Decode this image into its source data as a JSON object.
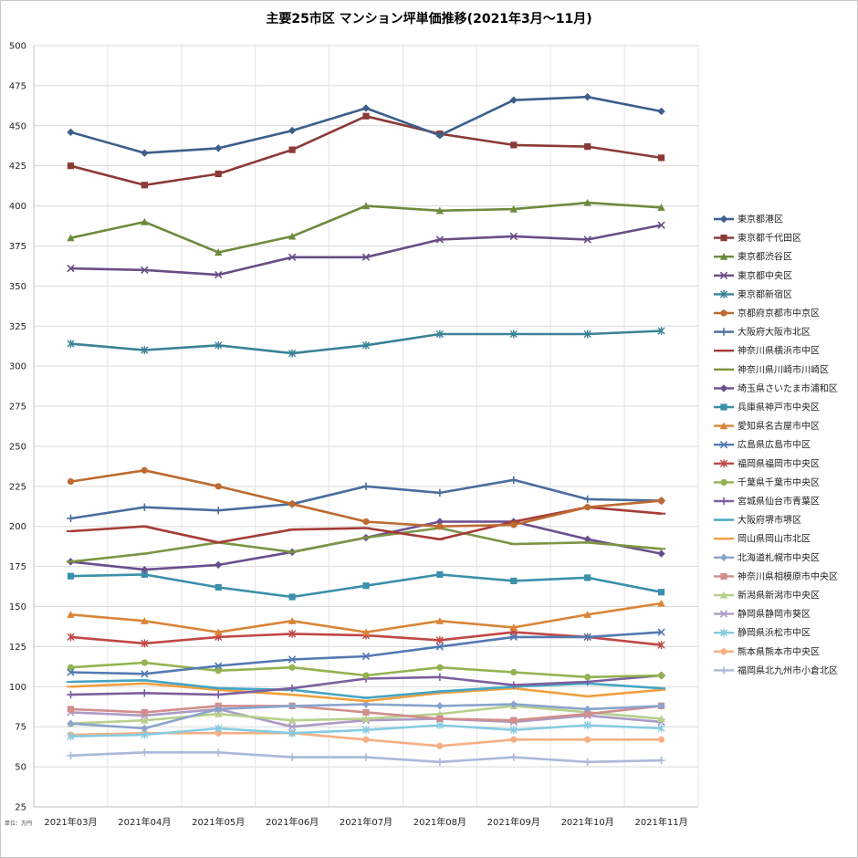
{
  "chart_data": {
    "type": "line",
    "title": "主要25市区 マンション坪単価推移(2021年3月～11月)",
    "unit_note": "単位：万円",
    "categories": [
      "2021年03月",
      "2021年04月",
      "2021年05月",
      "2021年06月",
      "2021年07月",
      "2021年08月",
      "2021年09月",
      "2021年10月",
      "2021年11月"
    ],
    "ylim": [
      25,
      500
    ],
    "yticks": [
      25,
      50,
      75,
      100,
      125,
      150,
      175,
      200,
      225,
      250,
      275,
      300,
      325,
      350,
      375,
      400,
      425,
      450,
      475,
      500
    ],
    "grid": true,
    "legend_position": "right",
    "series": [
      {
        "name": "東京都港区",
        "color": "#3d5f8a",
        "marker": "diamond",
        "values": [
          446,
          433,
          436,
          447,
          461,
          444,
          466,
          468,
          459
        ]
      },
      {
        "name": "東京都千代田区",
        "color": "#8b3a36",
        "marker": "square",
        "values": [
          425,
          413,
          420,
          435,
          456,
          445,
          438,
          437,
          430
        ]
      },
      {
        "name": "東京都渋谷区",
        "color": "#6e8a3e",
        "marker": "triangle",
        "values": [
          380,
          390,
          371,
          381,
          400,
          397,
          398,
          402,
          399
        ]
      },
      {
        "name": "東京都中央区",
        "color": "#6a4d86",
        "marker": "x",
        "values": [
          361,
          360,
          357,
          368,
          368,
          379,
          381,
          379,
          388
        ]
      },
      {
        "name": "東京都新宿区",
        "color": "#3a8297",
        "marker": "star",
        "values": [
          314,
          310,
          313,
          308,
          313,
          320,
          320,
          320,
          322
        ]
      },
      {
        "name": "京都府京都市中京区",
        "color": "#bd6b30",
        "marker": "circle",
        "values": [
          228,
          235,
          225,
          214,
          203,
          200,
          201,
          212,
          216
        ]
      },
      {
        "name": "大阪府大阪市北区",
        "color": "#4a6e9e",
        "marker": "plus",
        "values": [
          205,
          212,
          210,
          214,
          225,
          221,
          229,
          217,
          216
        ]
      },
      {
        "name": "神奈川県横浜市中区",
        "color": "#a53c38",
        "marker": "dash",
        "values": [
          197,
          200,
          190,
          198,
          199,
          192,
          203,
          212,
          208
        ]
      },
      {
        "name": "神奈川県川崎市川崎区",
        "color": "#7e9444",
        "marker": "dash",
        "values": [
          178,
          183,
          190,
          184,
          193,
          199,
          189,
          190,
          186
        ]
      },
      {
        "name": "埼玉県さいたま市浦和区",
        "color": "#6a4f8e",
        "marker": "diamond",
        "values": [
          178,
          173,
          176,
          184,
          193,
          203,
          203,
          192,
          183
        ]
      },
      {
        "name": "兵庫県神戸市中央区",
        "color": "#3b90aa",
        "marker": "square",
        "values": [
          169,
          170,
          162,
          156,
          163,
          170,
          166,
          168,
          159
        ]
      },
      {
        "name": "愛知県名古屋市中区",
        "color": "#d98538",
        "marker": "triangle",
        "values": [
          145,
          141,
          134,
          141,
          134,
          141,
          137,
          145,
          152
        ]
      },
      {
        "name": "広島県広島市中区",
        "color": "#5379b1",
        "marker": "x",
        "values": [
          109,
          108,
          113,
          117,
          119,
          125,
          131,
          131,
          134
        ]
      },
      {
        "name": "福岡県福岡市中央区",
        "color": "#c04844",
        "marker": "star",
        "values": [
          131,
          127,
          131,
          133,
          132,
          129,
          134,
          131,
          126
        ]
      },
      {
        "name": "千葉県千葉市中央区",
        "color": "#94b250",
        "marker": "circle",
        "values": [
          112,
          115,
          110,
          112,
          107,
          112,
          109,
          106,
          107
        ]
      },
      {
        "name": "宮城県仙台市青葉区",
        "color": "#7c5f9e",
        "marker": "plus",
        "values": [
          95,
          96,
          95,
          99,
          105,
          106,
          101,
          103,
          107
        ]
      },
      {
        "name": "大阪府堺市堺区",
        "color": "#46a5c3",
        "marker": "dash",
        "values": [
          103,
          104,
          99,
          98,
          93,
          97,
          100,
          102,
          99
        ]
      },
      {
        "name": "岡山県岡山市北区",
        "color": "#f0a040",
        "marker": "dash",
        "values": [
          100,
          102,
          98,
          95,
          91,
          96,
          99,
          94,
          98
        ]
      },
      {
        "name": "北海道札幌市中央区",
        "color": "#8aa4cc",
        "marker": "diamond",
        "values": [
          77,
          74,
          86,
          88,
          89,
          88,
          89,
          86,
          88
        ]
      },
      {
        "name": "神奈川県相模原市中央区",
        "color": "#d08e8c",
        "marker": "square",
        "values": [
          86,
          84,
          88,
          88,
          84,
          80,
          79,
          83,
          88
        ]
      },
      {
        "name": "新潟県新潟市中央区",
        "color": "#b8cf8c",
        "marker": "triangle",
        "values": [
          77,
          79,
          83,
          79,
          80,
          83,
          88,
          84,
          80
        ]
      },
      {
        "name": "静岡県静岡市葵区",
        "color": "#ab9bc6",
        "marker": "x",
        "values": [
          84,
          82,
          86,
          75,
          79,
          80,
          78,
          82,
          78
        ]
      },
      {
        "name": "静岡県浜松市中区",
        "color": "#86cbe0",
        "marker": "star",
        "values": [
          69,
          70,
          74,
          71,
          73,
          76,
          73,
          76,
          74
        ]
      },
      {
        "name": "熊本県熊本市中央区",
        "color": "#f4b084",
        "marker": "circle",
        "values": [
          70,
          71,
          71,
          71,
          67,
          63,
          67,
          67,
          67
        ]
      },
      {
        "name": "福岡県北九州市小倉北区",
        "color": "#a9b9d9",
        "marker": "plus",
        "values": [
          57,
          59,
          59,
          56,
          56,
          53,
          56,
          53,
          54
        ]
      }
    ]
  }
}
